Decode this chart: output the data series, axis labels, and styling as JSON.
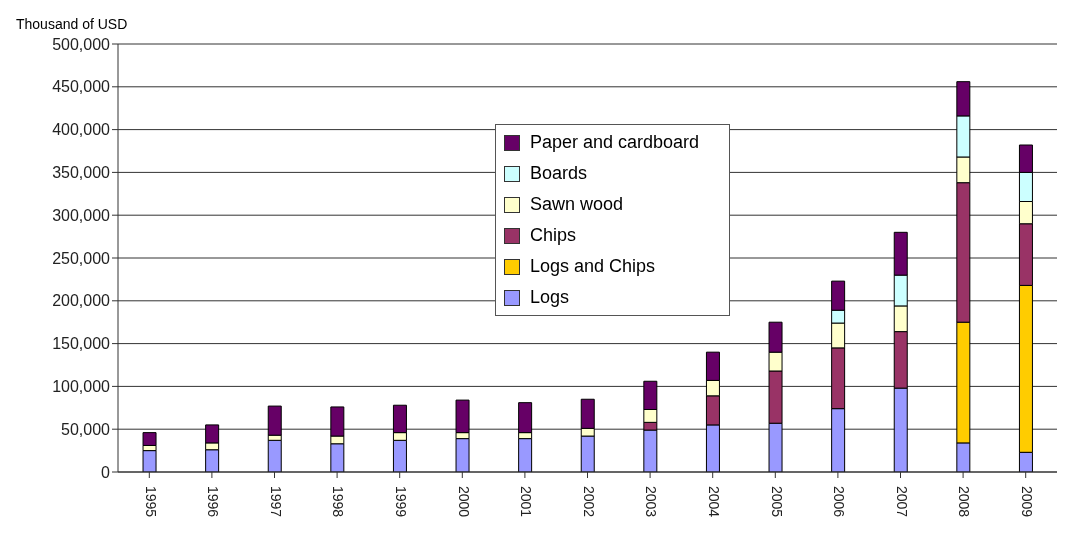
{
  "chart_data": {
    "type": "bar",
    "stacked": true,
    "ylabel": "Thousand of USD",
    "categories": [
      "1995",
      "1996",
      "1997",
      "1998",
      "1999",
      "2000",
      "2001",
      "2002",
      "2003",
      "2004",
      "2005",
      "2006",
      "2007",
      "2008",
      "2009"
    ],
    "series": [
      {
        "name": "Logs",
        "color": "#9999ff",
        "values": [
          25000,
          26000,
          37000,
          33000,
          37000,
          39000,
          39000,
          42000,
          49000,
          55000,
          57000,
          74000,
          98000,
          34000,
          23000
        ]
      },
      {
        "name": "Logs and Chips",
        "color": "#ffcc00",
        "values": [
          null,
          null,
          null,
          null,
          null,
          null,
          null,
          null,
          null,
          null,
          null,
          null,
          null,
          141000,
          195000
        ]
      },
      {
        "name": "Chips",
        "color": "#993366",
        "values": [
          null,
          null,
          null,
          null,
          null,
          null,
          null,
          null,
          9000,
          34000,
          61000,
          71000,
          66000,
          163000,
          72000
        ]
      },
      {
        "name": "Sawn wood",
        "color": "#ffffcc",
        "values": [
          6000,
          8000,
          6000,
          9000,
          9000,
          7000,
          7000,
          9000,
          15000,
          18000,
          22000,
          29000,
          30000,
          30000,
          26000
        ]
      },
      {
        "name": "Boards",
        "color": "#ccffff",
        "values": [
          null,
          null,
          null,
          null,
          null,
          null,
          null,
          null,
          null,
          null,
          null,
          15000,
          36000,
          48000,
          34000
        ]
      },
      {
        "name": "Paper and cardboard",
        "color": "#660066",
        "values": [
          15000,
          21000,
          34000,
          34000,
          32000,
          38000,
          35000,
          34000,
          33000,
          33000,
          35000,
          34000,
          50000,
          40000,
          32000
        ]
      }
    ],
    "ylim": [
      0,
      500000
    ],
    "yticks": [
      0,
      {
        "value": 50000,
        "label": "50,000"
      },
      {
        "value": 100000,
        "label": "100,000"
      },
      {
        "value": 150000,
        "label": "150,000"
      },
      {
        "value": 200000,
        "label": "200,000"
      },
      {
        "value": 250000,
        "label": "250,000"
      },
      {
        "value": 300000,
        "label": "300,000"
      },
      {
        "value": 350000,
        "label": "350,000"
      },
      {
        "value": 400000,
        "label": "400,000"
      },
      {
        "value": 450000,
        "label": "450,000"
      },
      {
        "value": 500000,
        "label": "500,000"
      }
    ],
    "grid": "y",
    "legend": "top"
  }
}
